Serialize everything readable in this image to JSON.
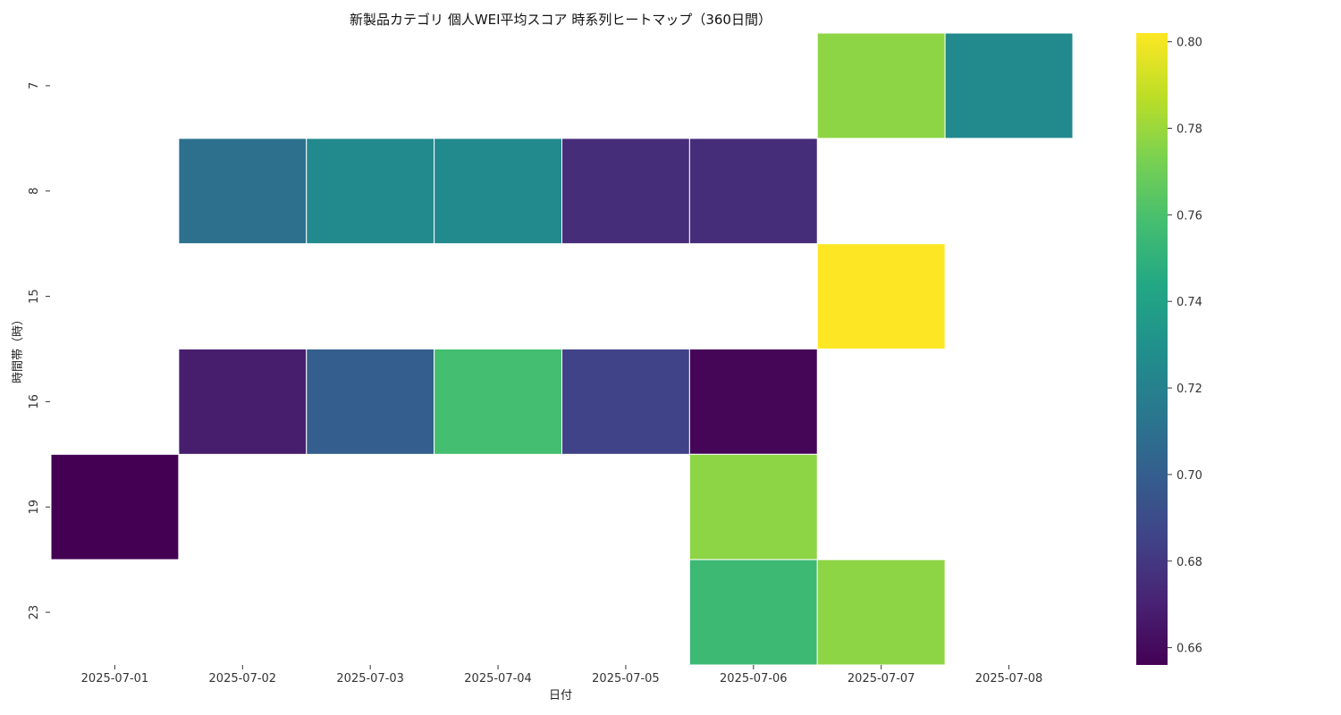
{
  "chart_data": {
    "type": "heatmap",
    "title": "新製品カテゴリ 個人WEI平均スコア 時系列ヒートマップ（360日間）",
    "xlabel": "日付",
    "ylabel": "時間帯（時）",
    "x_categories": [
      "2025-07-01",
      "2025-07-02",
      "2025-07-03",
      "2025-07-04",
      "2025-07-05",
      "2025-07-06",
      "2025-07-07",
      "2025-07-08"
    ],
    "y_categories": [
      "7",
      "8",
      "15",
      "16",
      "19",
      "23"
    ],
    "values": [
      [
        null,
        null,
        null,
        null,
        null,
        null,
        0.777,
        0.725
      ],
      [
        null,
        0.71,
        0.725,
        0.725,
        0.675,
        0.675,
        null,
        null
      ],
      [
        null,
        null,
        null,
        null,
        null,
        null,
        0.802,
        null
      ],
      [
        null,
        0.668,
        0.7,
        0.758,
        0.685,
        0.658,
        null,
        null
      ],
      [
        0.656,
        null,
        null,
        null,
        null,
        0.777,
        null,
        null
      ],
      [
        null,
        null,
        null,
        null,
        null,
        0.755,
        0.777,
        null
      ]
    ],
    "colormap": "viridis",
    "vmin": 0.656,
    "vmax": 0.802,
    "colorbar_ticks": [
      "0.66",
      "0.68",
      "0.70",
      "0.72",
      "0.74",
      "0.76",
      "0.78",
      "0.80"
    ],
    "grid": false,
    "legend": "right colorbar"
  }
}
